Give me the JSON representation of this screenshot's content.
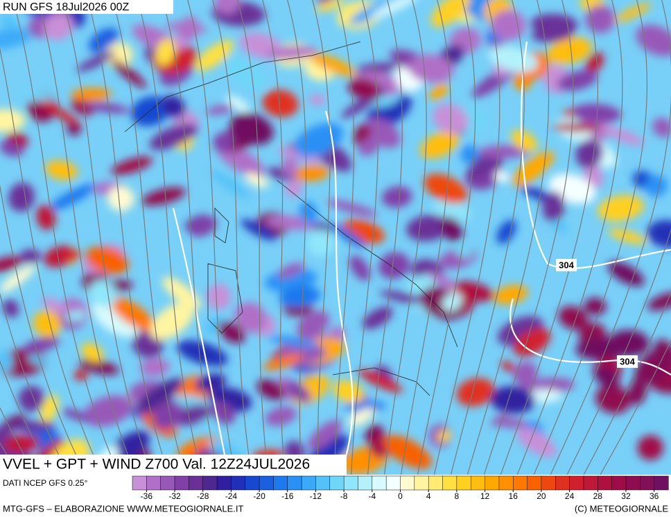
{
  "header": {
    "run": "RUN GFS 18Jul2026 00Z"
  },
  "map": {
    "title": "VVEL + GPT + WIND Z700 Val. 12Z24JUL2026",
    "contour_labels": [
      "304",
      "304"
    ]
  },
  "colorbar": {
    "source": "DATI NCEP GFS 0.25°",
    "xlim": [
      -38,
      38
    ],
    "ticks": [
      -36,
      -32,
      -28,
      -24,
      -20,
      -16,
      -12,
      -8,
      -4,
      0,
      4,
      8,
      12,
      16,
      20,
      24,
      28,
      32,
      36
    ],
    "colors": [
      "#c890d8",
      "#b070c8",
      "#9858b8",
      "#8040a8",
      "#6a3098",
      "#4c2890",
      "#3020a0",
      "#2030b8",
      "#1848d0",
      "#1a60e0",
      "#1e78ee",
      "#2a90f5",
      "#3caaf8",
      "#54c2f8",
      "#70d6f8",
      "#90e6fa",
      "#b4f2fb",
      "#d8fafc",
      "#f4ffff",
      "#fffad0",
      "#fff4a0",
      "#ffec70",
      "#ffe040",
      "#ffd020",
      "#ffbe10",
      "#ffa800",
      "#ff9000",
      "#ff7800",
      "#f86000",
      "#ee4810",
      "#e03020",
      "#d02030",
      "#c01838",
      "#b01040",
      "#a00c48",
      "#900c50",
      "#801058",
      "#701060"
    ]
  },
  "footer": {
    "left": "MTG-GFS – ELABORAZIONE WWW.METEOGIORNALE.IT",
    "right": "(C) METEOGIORNALE"
  }
}
